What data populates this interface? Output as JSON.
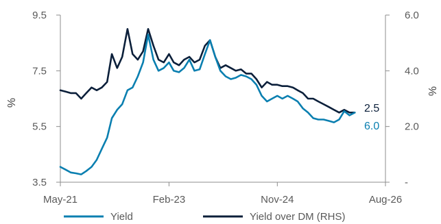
{
  "chart_data": {
    "type": "line",
    "title": "",
    "xlabel": "",
    "ylabel": "%",
    "y2label": "%",
    "xlim": [
      "2021-05-01",
      "2026-08-01"
    ],
    "xticks": [
      "May-21",
      "Feb-23",
      "Nov-24",
      "Aug-26"
    ],
    "ylim": [
      3.5,
      9.5
    ],
    "yticks": [
      "3.5",
      "5.5",
      "7.5",
      "9.5"
    ],
    "y2lim": [
      0.0,
      6.0
    ],
    "y2ticks": [
      "-",
      "2.0",
      "4.0",
      "6.0"
    ],
    "grid": false,
    "legend_position": "bottom",
    "series": [
      {
        "name": "Yield",
        "axis": "left",
        "color": "#0A7FB0",
        "end_label": "6.0",
        "points": [
          [
            "2021-05-01",
            4.05
          ],
          [
            "2021-06-01",
            3.95
          ],
          [
            "2021-07-01",
            3.85
          ],
          [
            "2021-08-01",
            3.82
          ],
          [
            "2021-09-01",
            3.78
          ],
          [
            "2021-10-01",
            3.9
          ],
          [
            "2021-11-01",
            4.05
          ],
          [
            "2021-12-01",
            4.3
          ],
          [
            "2022-01-01",
            4.7
          ],
          [
            "2022-02-01",
            5.1
          ],
          [
            "2022-03-01",
            5.8
          ],
          [
            "2022-04-01",
            6.1
          ],
          [
            "2022-05-01",
            6.3
          ],
          [
            "2022-06-01",
            6.8
          ],
          [
            "2022-07-01",
            6.9
          ],
          [
            "2022-08-01",
            7.3
          ],
          [
            "2022-09-01",
            7.8
          ],
          [
            "2022-10-01",
            8.8
          ],
          [
            "2022-11-01",
            7.9
          ],
          [
            "2022-12-01",
            7.5
          ],
          [
            "2023-01-01",
            7.6
          ],
          [
            "2023-02-01",
            7.8
          ],
          [
            "2023-03-01",
            7.5
          ],
          [
            "2023-04-01",
            7.45
          ],
          [
            "2023-05-01",
            7.6
          ],
          [
            "2023-06-01",
            7.9
          ],
          [
            "2023-07-01",
            7.5
          ],
          [
            "2023-08-01",
            7.55
          ],
          [
            "2023-09-01",
            8.1
          ],
          [
            "2023-10-01",
            8.6
          ],
          [
            "2023-11-01",
            8.0
          ],
          [
            "2023-12-01",
            7.5
          ],
          [
            "2024-01-01",
            7.3
          ],
          [
            "2024-02-01",
            7.2
          ],
          [
            "2024-03-01",
            7.25
          ],
          [
            "2024-04-01",
            7.35
          ],
          [
            "2024-05-01",
            7.3
          ],
          [
            "2024-06-01",
            7.2
          ],
          [
            "2024-07-01",
            7.0
          ],
          [
            "2024-08-01",
            6.6
          ],
          [
            "2024-09-01",
            6.4
          ],
          [
            "2024-10-01",
            6.5
          ],
          [
            "2024-11-01",
            6.6
          ],
          [
            "2024-12-01",
            6.5
          ],
          [
            "2025-01-01",
            6.6
          ],
          [
            "2025-02-01",
            6.5
          ],
          [
            "2025-03-01",
            6.4
          ],
          [
            "2025-04-01",
            6.15
          ],
          [
            "2025-05-01",
            6.0
          ],
          [
            "2025-06-01",
            5.8
          ],
          [
            "2025-07-01",
            5.75
          ],
          [
            "2025-08-01",
            5.75
          ],
          [
            "2025-09-01",
            5.7
          ],
          [
            "2025-10-01",
            5.65
          ],
          [
            "2025-11-01",
            5.75
          ],
          [
            "2025-12-01",
            6.05
          ],
          [
            "2026-01-01",
            5.9
          ],
          [
            "2026-02-01",
            6.0
          ]
        ]
      },
      {
        "name": "Yield over DM (RHS)",
        "axis": "right",
        "color": "#0B1F3A",
        "end_label": "2.5",
        "points": [
          [
            "2021-05-01",
            3.3
          ],
          [
            "2021-06-01",
            3.25
          ],
          [
            "2021-07-01",
            3.2
          ],
          [
            "2021-08-01",
            3.2
          ],
          [
            "2021-09-01",
            3.0
          ],
          [
            "2021-10-01",
            3.2
          ],
          [
            "2021-11-01",
            3.4
          ],
          [
            "2021-12-01",
            3.3
          ],
          [
            "2022-01-01",
            3.4
          ],
          [
            "2022-02-01",
            3.6
          ],
          [
            "2022-03-01",
            4.6
          ],
          [
            "2022-04-01",
            4.1
          ],
          [
            "2022-05-01",
            4.5
          ],
          [
            "2022-06-01",
            5.5
          ],
          [
            "2022-07-01",
            4.6
          ],
          [
            "2022-08-01",
            4.4
          ],
          [
            "2022-09-01",
            4.7
          ],
          [
            "2022-10-01",
            5.5
          ],
          [
            "2022-11-01",
            4.9
          ],
          [
            "2022-12-01",
            4.4
          ],
          [
            "2023-01-01",
            4.3
          ],
          [
            "2023-02-01",
            4.6
          ],
          [
            "2023-03-01",
            4.3
          ],
          [
            "2023-04-01",
            4.2
          ],
          [
            "2023-05-01",
            4.4
          ],
          [
            "2023-06-01",
            4.5
          ],
          [
            "2023-07-01",
            4.3
          ],
          [
            "2023-08-01",
            4.4
          ],
          [
            "2023-09-01",
            4.9
          ],
          [
            "2023-10-01",
            5.1
          ],
          [
            "2023-11-01",
            4.5
          ],
          [
            "2023-12-01",
            4.1
          ],
          [
            "2024-01-01",
            4.2
          ],
          [
            "2024-02-01",
            4.1
          ],
          [
            "2024-03-01",
            4.0
          ],
          [
            "2024-04-01",
            4.05
          ],
          [
            "2024-05-01",
            3.9
          ],
          [
            "2024-06-01",
            3.9
          ],
          [
            "2024-07-01",
            3.7
          ],
          [
            "2024-08-01",
            3.4
          ],
          [
            "2024-09-01",
            3.6
          ],
          [
            "2024-10-01",
            3.5
          ],
          [
            "2024-11-01",
            3.5
          ],
          [
            "2024-12-01",
            3.45
          ],
          [
            "2025-01-01",
            3.45
          ],
          [
            "2025-02-01",
            3.4
          ],
          [
            "2025-03-01",
            3.3
          ],
          [
            "2025-04-01",
            3.2
          ],
          [
            "2025-05-01",
            3.0
          ],
          [
            "2025-06-01",
            3.0
          ],
          [
            "2025-07-01",
            2.9
          ],
          [
            "2025-08-01",
            2.8
          ],
          [
            "2025-09-01",
            2.7
          ],
          [
            "2025-10-01",
            2.6
          ],
          [
            "2025-11-01",
            2.5
          ],
          [
            "2025-12-01",
            2.6
          ],
          [
            "2026-01-01",
            2.5
          ],
          [
            "2026-02-01",
            2.5
          ]
        ]
      }
    ]
  }
}
